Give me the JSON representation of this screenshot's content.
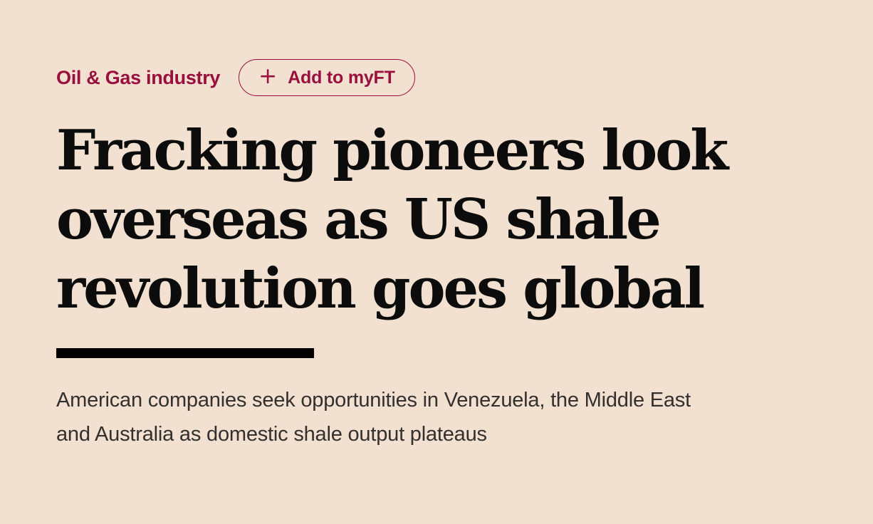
{
  "colors": {
    "background": "#f2e0d0",
    "claret": "#990f3d",
    "headline": "#0c0c0c",
    "divider": "#000000",
    "standfirst": "#33302e"
  },
  "topic": {
    "label": "Oil & Gas industry"
  },
  "myft_button": {
    "plus_icon": "+",
    "label": "Add to myFT"
  },
  "headline": {
    "text": "Fracking pioneers look overseas as US shale revolution goes global",
    "lines": [
      "Fracking pioneers look",
      "overseas as US shale",
      "revolution goes global"
    ]
  },
  "standfirst": {
    "text": "American companies seek opportunities in Venezuela, the Middle East and Australia as domestic shale output plateaus",
    "lines": [
      "American companies seek opportunities in Venezuela, the Middle East",
      "and Australia as domestic shale output plateaus"
    ]
  }
}
